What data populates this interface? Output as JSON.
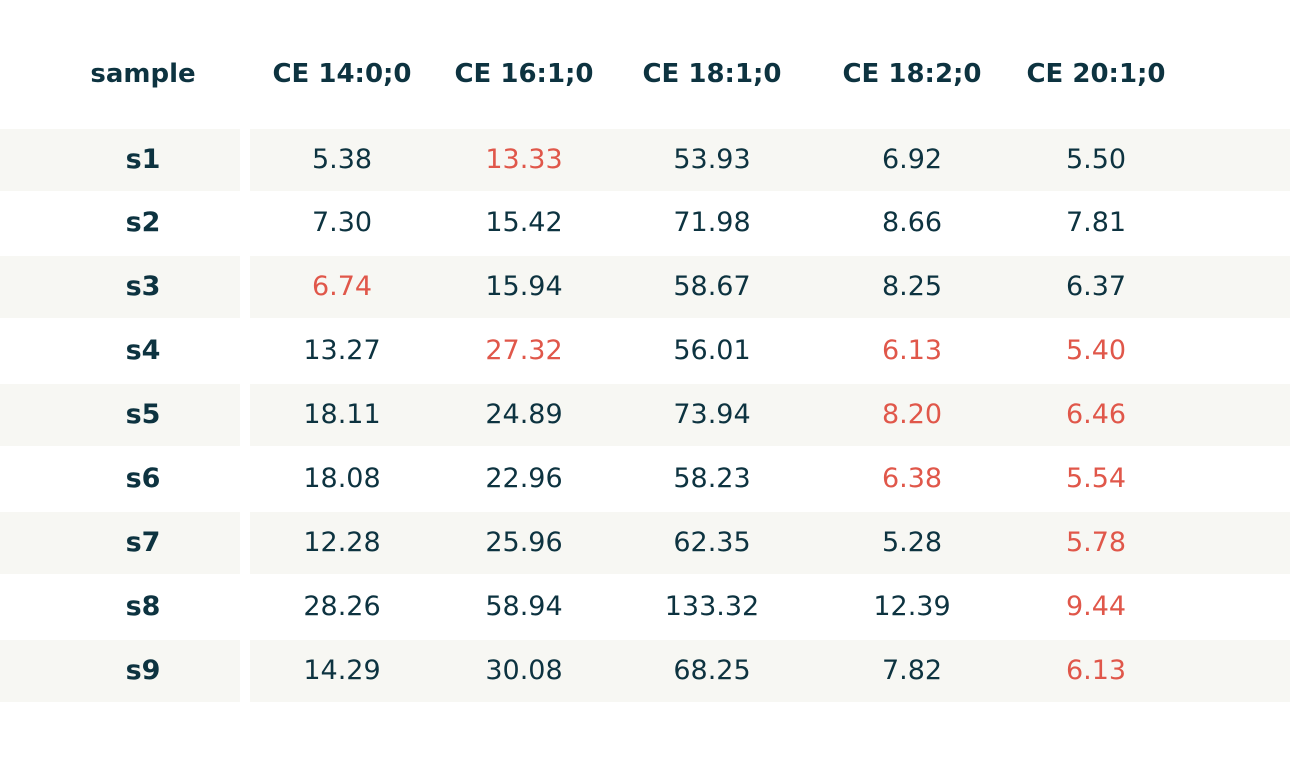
{
  "chart_data": {
    "type": "table",
    "columns": [
      "sample",
      "CE 14:0;0",
      "CE 16:1;0",
      "CE 18:1;0",
      "CE 18:2;0",
      "CE 20:1;0"
    ],
    "rows": [
      {
        "sample": "s1",
        "values": [
          "5.38",
          "13.33",
          "53.93",
          "6.92",
          "5.50"
        ],
        "highlight": [
          false,
          true,
          false,
          false,
          false
        ]
      },
      {
        "sample": "s2",
        "values": [
          "7.30",
          "15.42",
          "71.98",
          "8.66",
          "7.81"
        ],
        "highlight": [
          false,
          false,
          false,
          false,
          false
        ]
      },
      {
        "sample": "s3",
        "values": [
          "6.74",
          "15.94",
          "58.67",
          "8.25",
          "6.37"
        ],
        "highlight": [
          true,
          false,
          false,
          false,
          false
        ]
      },
      {
        "sample": "s4",
        "values": [
          "13.27",
          "27.32",
          "56.01",
          "6.13",
          "5.40"
        ],
        "highlight": [
          false,
          true,
          false,
          true,
          true
        ]
      },
      {
        "sample": "s5",
        "values": [
          "18.11",
          "24.89",
          "73.94",
          "8.20",
          "6.46"
        ],
        "highlight": [
          false,
          false,
          false,
          true,
          true
        ]
      },
      {
        "sample": "s6",
        "values": [
          "18.08",
          "22.96",
          "58.23",
          "6.38",
          "5.54"
        ],
        "highlight": [
          false,
          false,
          false,
          true,
          true
        ]
      },
      {
        "sample": "s7",
        "values": [
          "12.28",
          "25.96",
          "62.35",
          "5.28",
          "5.78"
        ],
        "highlight": [
          false,
          false,
          false,
          false,
          true
        ]
      },
      {
        "sample": "s8",
        "values": [
          "28.26",
          "58.94",
          "133.32",
          "12.39",
          "9.44"
        ],
        "highlight": [
          false,
          false,
          false,
          false,
          true
        ]
      },
      {
        "sample": "s9",
        "values": [
          "14.29",
          "30.08",
          "68.25",
          "7.82",
          "6.13"
        ],
        "highlight": [
          false,
          false,
          false,
          false,
          true
        ]
      }
    ]
  },
  "colors": {
    "text": "#0d3340",
    "highlight": "#e0574a",
    "band": "#f7f7f3",
    "background": "#ffffff"
  }
}
